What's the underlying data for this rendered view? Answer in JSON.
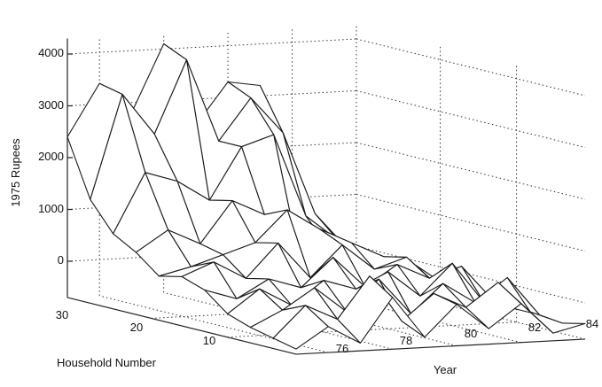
{
  "chart_data": {
    "type": "surface",
    "title": "",
    "zlabel": "1975 Rupees",
    "xlabel": "Year",
    "ylabel": "Household Number",
    "zlim": [
      -700,
      4300
    ],
    "x_range": [
      75,
      84
    ],
    "y_range": [
      1,
      31
    ],
    "z_ticks": [
      "0",
      "1000",
      "2000",
      "3000",
      "4000"
    ],
    "x_ticks": [
      "76",
      "78",
      "80",
      "82",
      "84"
    ],
    "y_ticks": [
      "10",
      "20",
      "30"
    ],
    "grid": true,
    "x": [
      75,
      76,
      77,
      78,
      79,
      80,
      81,
      82,
      83,
      84
    ],
    "households": [
      1,
      4,
      7,
      10,
      13,
      16,
      19,
      22,
      25,
      28,
      31
    ],
    "series": [
      {
        "values": [
          -600,
          -200,
          -550,
          300,
          -500,
          100,
          -400,
          50,
          -550,
          -400
        ]
      },
      {
        "values": [
          -500,
          100,
          -200,
          600,
          -300,
          200,
          -100,
          350,
          -250,
          -500
        ]
      },
      {
        "values": [
          -400,
          -100,
          300,
          -200,
          400,
          -300,
          250,
          -150,
          300,
          -450
        ]
      },
      {
        "values": [
          -250,
          200,
          -150,
          300,
          100,
          400,
          -100,
          500,
          -300,
          -450
        ]
      },
      {
        "values": [
          100,
          -100,
          250,
          50,
          600,
          0,
          400,
          100,
          300,
          -400
        ]
      },
      {
        "values": [
          250,
          500,
          150,
          800,
          100,
          700,
          200,
          400,
          -200,
          -400
        ]
      },
      {
        "values": [
          150,
          300,
          500,
          700,
          1300,
          900,
          600,
          300,
          100,
          -350
        ]
      },
      {
        "values": [
          500,
          900,
          600,
          1400,
          1100,
          500,
          400,
          200,
          -100,
          -300
        ]
      },
      {
        "values": [
          750,
          1900,
          1700,
          1300,
          2300,
          2500,
          900,
          400,
          0,
          -300
        ]
      },
      {
        "values": [
          1300,
          3300,
          2500,
          3900,
          2300,
          3100,
          2400,
          800,
          100,
          -300
        ]
      },
      {
        "values": [
          2400,
          3400,
          2800,
          4100,
          2500,
          3300,
          3200,
          1200,
          200,
          -200
        ]
      }
    ]
  }
}
